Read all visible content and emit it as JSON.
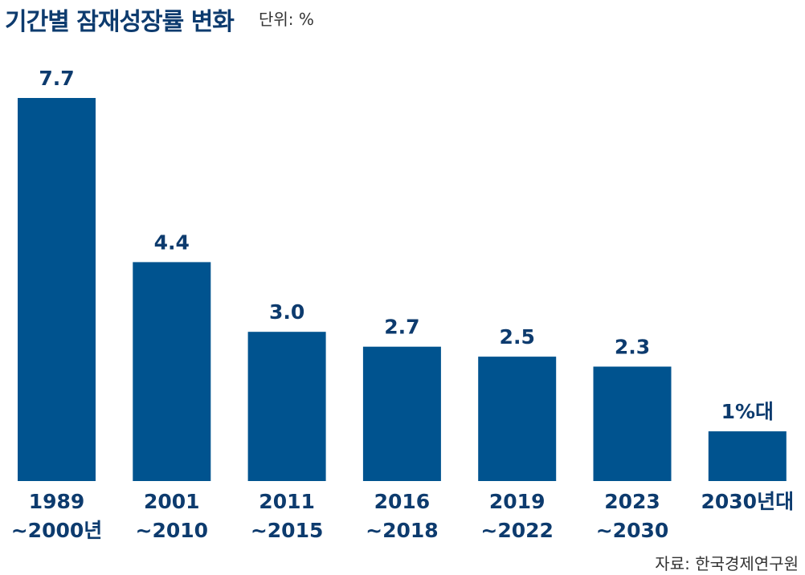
{
  "chart_data": {
    "type": "bar",
    "title": "기간별 잠재성장률 변화",
    "unit_label": "단위: %",
    "categories": [
      [
        "1989",
        "~2000년"
      ],
      [
        "2001",
        "~2010"
      ],
      [
        "2011",
        "~2015"
      ],
      [
        "2016",
        "~2018"
      ],
      [
        "2019",
        "~2022"
      ],
      [
        "2023",
        "~2030"
      ],
      [
        "2030년대"
      ]
    ],
    "values": [
      7.7,
      4.4,
      3.0,
      2.7,
      2.5,
      2.3,
      1.0
    ],
    "value_labels": [
      "7.7",
      "4.4",
      "3.0",
      "2.7",
      "2.5",
      "2.3",
      "1%대"
    ],
    "ylim": [
      0,
      7.7
    ],
    "grid": false,
    "bar_color": "#00538f",
    "text_color": "#0d3b6e",
    "source": "자료: 한국경제연구원"
  }
}
